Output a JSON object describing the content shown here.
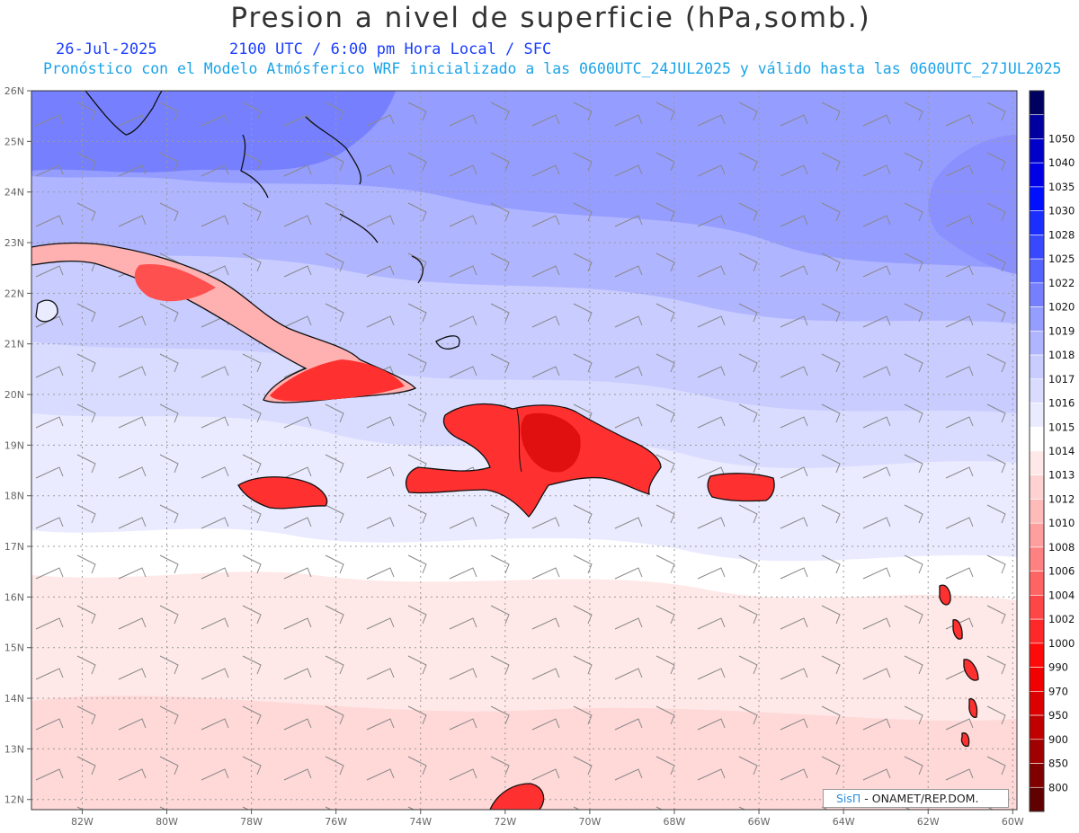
{
  "title": "Presion a nivel de superficie (hPa,somb.)",
  "date": "26-Jul-2025",
  "valid_time": "2100 UTC / 6:00 pm Hora Local / SFC",
  "subtitle": "Pronóstico con el Modelo Atmósferico WRF inicializado a las 0600UTC_24JUL2025 y válido hasta las  0600UTC_27JUL2025",
  "credit": {
    "brand": "SisΠ",
    "text": " - ONAMET/REP.DOM."
  },
  "map": {
    "lon_range": [
      -83.2,
      -59.9
    ],
    "lat_range": [
      11.8,
      26.0
    ],
    "lat_ticks": [
      {
        "v": 26,
        "label": "26N"
      },
      {
        "v": 25,
        "label": "25N"
      },
      {
        "v": 24,
        "label": "24N"
      },
      {
        "v": 23,
        "label": "23N"
      },
      {
        "v": 22,
        "label": "22N"
      },
      {
        "v": 21,
        "label": "21N"
      },
      {
        "v": 20,
        "label": "20N"
      },
      {
        "v": 19,
        "label": "19N"
      },
      {
        "v": 18,
        "label": "18N"
      },
      {
        "v": 17,
        "label": "17N"
      },
      {
        "v": 16,
        "label": "16N"
      },
      {
        "v": 15,
        "label": "15N"
      },
      {
        "v": 14,
        "label": "14N"
      },
      {
        "v": 13,
        "label": "13N"
      },
      {
        "v": 12,
        "label": "12N"
      }
    ],
    "lon_ticks": [
      {
        "v": -82,
        "label": "82W"
      },
      {
        "v": -80,
        "label": "80W"
      },
      {
        "v": -78,
        "label": "78W"
      },
      {
        "v": -76,
        "label": "76W"
      },
      {
        "v": -74,
        "label": "74W"
      },
      {
        "v": -72,
        "label": "72W"
      },
      {
        "v": -70,
        "label": "70W"
      },
      {
        "v": -68,
        "label": "68W"
      },
      {
        "v": -66,
        "label": "66W"
      },
      {
        "v": -64,
        "label": "64W"
      },
      {
        "v": -62,
        "label": "62W"
      },
      {
        "v": -60,
        "label": "60W"
      }
    ]
  },
  "colorbar": [
    {
      "label": "",
      "color": "#000060"
    },
    {
      "label": "1050",
      "color": "#0000a0"
    },
    {
      "label": "1040",
      "color": "#0000c8"
    },
    {
      "label": "1035",
      "color": "#0000e6"
    },
    {
      "label": "1030",
      "color": "#0010ff"
    },
    {
      "label": "1028",
      "color": "#1a2eff"
    },
    {
      "label": "1025",
      "color": "#3848ff"
    },
    {
      "label": "1022",
      "color": "#5563ff"
    },
    {
      "label": "1020",
      "color": "#7680ff"
    },
    {
      "label": "1019",
      "color": "#959dff"
    },
    {
      "label": "1018",
      "color": "#b0b5ff"
    },
    {
      "label": "1017",
      "color": "#c8ccff"
    },
    {
      "label": "1016",
      "color": "#dadcff"
    },
    {
      "label": "1015",
      "color": "#eaebff"
    },
    {
      "label": "1014",
      "color": "#ffffff"
    },
    {
      "label": "1013",
      "color": "#ffe8e8"
    },
    {
      "label": "1012",
      "color": "#ffd2d2"
    },
    {
      "label": "1010",
      "color": "#ffbaba"
    },
    {
      "label": "1008",
      "color": "#ff9e9e"
    },
    {
      "label": "1006",
      "color": "#ff8282"
    },
    {
      "label": "1004",
      "color": "#ff6464"
    },
    {
      "label": "1002",
      "color": "#ff4646"
    },
    {
      "label": "1000",
      "color": "#ff2828"
    },
    {
      "label": "990",
      "color": "#ff0a0a"
    },
    {
      "label": "970",
      "color": "#f00000"
    },
    {
      "label": "950",
      "color": "#dc0000"
    },
    {
      "label": "900",
      "color": "#c00000"
    },
    {
      "label": "850",
      "color": "#a00000"
    },
    {
      "label": "800",
      "color": "#800000"
    },
    {
      "label": "",
      "color": "#600000"
    }
  ]
}
